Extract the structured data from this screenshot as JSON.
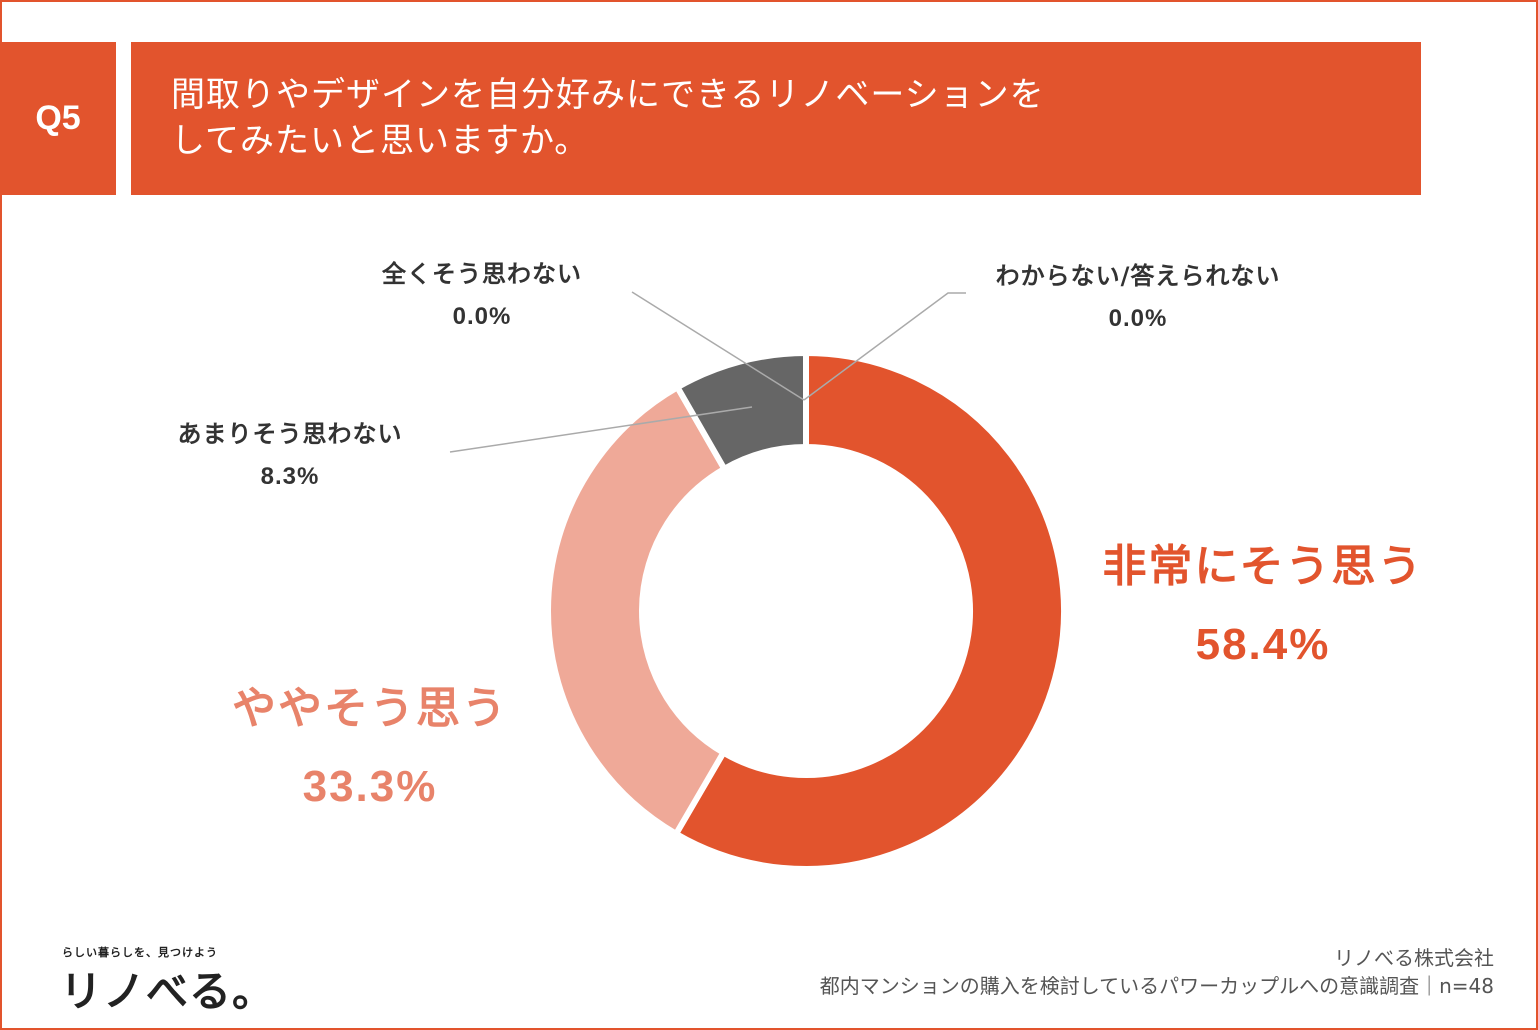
{
  "header": {
    "badge": "Q5",
    "question_line1": "間取りやデザインを自分好みにできるリノベーションを",
    "question_line2": "してみたいと思いますか。"
  },
  "chart_data": {
    "type": "pie",
    "donut": true,
    "series": [
      {
        "label": "非常にそう思う",
        "value": 58.4,
        "display": "58.4%",
        "color": "#e2542d"
      },
      {
        "label": "ややそう思う",
        "value": 33.3,
        "display": "33.3%",
        "color": "#efa998"
      },
      {
        "label": "あまりそう思わない",
        "value": 8.3,
        "display": "8.3%",
        "color": "#666666"
      },
      {
        "label": "全くそう思わない",
        "value": 0.0,
        "display": "0.0%",
        "color": "#888888"
      },
      {
        "label": "わからない/答えられない",
        "value": 0.0,
        "display": "0.0%",
        "color": "#888888"
      }
    ]
  },
  "footer": {
    "logo_tagline": "らしい暮らしを、見つけよう",
    "logo": "リノべる。",
    "company": "リノべる株式会社",
    "survey": "都内マンションの購入を検討しているパワーカップルへの意識調査｜n=48"
  },
  "colors": {
    "accent": "#e2542d",
    "light": "#efa998",
    "gray": "#666666",
    "leader": "#aaaaaa"
  }
}
